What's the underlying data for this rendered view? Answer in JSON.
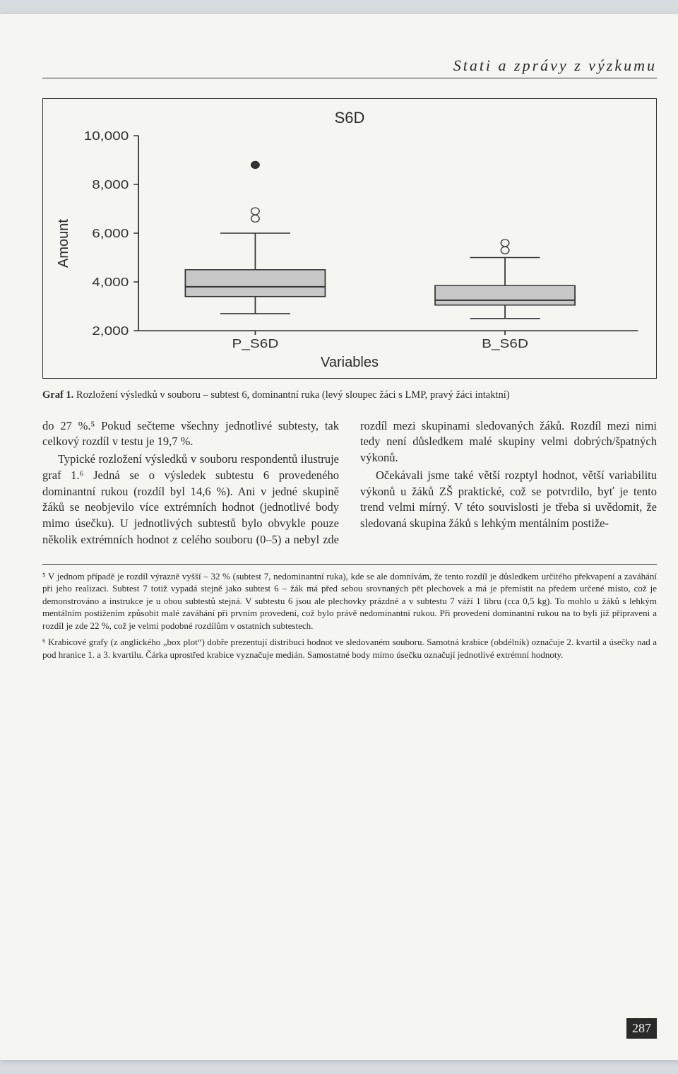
{
  "header": {
    "title": "Stati a zprávy z výzkumu"
  },
  "chart": {
    "type": "boxplot",
    "title": "S6D",
    "ylabel": "Amount",
    "xlabel": "Variables",
    "ylim": [
      2000,
      10000
    ],
    "yticks": [
      2000,
      4000,
      6000,
      8000,
      10000
    ],
    "ytick_labels": [
      "2,000",
      "4,000",
      "6,000",
      "8,000",
      "10,000"
    ],
    "label_fontsize": 20,
    "tick_fontsize": 18,
    "title_fontsize": 22,
    "axis_color": "#333333",
    "tick_color": "#333333",
    "box_fill": "#c8c8c8",
    "box_stroke": "#333333",
    "whisker_stroke": "#333333",
    "outlier_stroke": "#333333",
    "outlier_fill_open": "#f5f5f2",
    "outlier_fill_solid": "#333333",
    "background_color": "#f5f5f2",
    "categories": [
      "P_S6D",
      "B_S6D"
    ],
    "boxes": [
      {
        "label": "P_S6D",
        "whisker_low": 2700,
        "q1": 3400,
        "median": 3800,
        "q3": 4500,
        "whisker_high": 6000,
        "outliers": [
          {
            "value": 6600,
            "filled": false
          },
          {
            "value": 6900,
            "filled": false
          },
          {
            "value": 8800,
            "filled": true
          }
        ]
      },
      {
        "label": "B_S6D",
        "whisker_low": 2500,
        "q1": 3050,
        "median": 3250,
        "q3": 3850,
        "whisker_high": 5000,
        "outliers": [
          {
            "value": 5300,
            "filled": false
          },
          {
            "value": 5600,
            "filled": false
          }
        ]
      }
    ],
    "box_width_ratio": 0.28
  },
  "caption": {
    "label": "Graf 1.",
    "text": "Rozložení výsledků v souboru – subtest 6, dominantní ruka (levý sloupec žáci s LMP, pravý žáci intaktní)"
  },
  "body": {
    "p1": "do 27 %.⁵ Pokud sečteme všechny jednotlivé subtesty, tak celkový rozdíl v testu je 19,7 %.",
    "p2": "Typické rozložení výsledků v souboru respondentů ilustruje graf 1.⁶ Jedná se o výsledek subtestu 6 provedeného dominantní rukou (rozdíl byl 14,6 %). Ani v jedné skupině žáků se neobjevilo více extrémních hodnot (jednotlivé body mimo úsečku). U jednotlivých subtestů bylo obvykle pouze několik extrémních hodnot z celého souboru (0–5) a nebyl zde rozdíl mezi skupinami sledovaných žáků. Rozdíl mezi nimi tedy není důsledkem malé skupiny velmi dobrých/špatných výkonů.",
    "p3": "Očekávali jsme také větší rozptyl hodnot, větší variabilitu výkonů u žáků ZŠ praktické, což se potvrdilo, byť je tento trend velmi mírný. V této souvislosti je třeba si uvědomit, že sledovaná skupina žáků s lehkým mentálním postiže-"
  },
  "footnotes": {
    "fn5": "⁵ V jednom případě je rozdíl výrazně vyšší – 32 % (subtest 7, nedominantní ruka), kde se ale domnívám, že tento rozdíl je důsledkem určitého překvapení a zaváhání při jeho realizaci. Subtest 7 totiž vypadá stejně jako subtest 6 – žák má před sebou srovnaných pět plechovek a má je přemístit na předem určené místo, což je demonstrováno a instrukce je u obou subtestů stejná. V subtestu 6 jsou ale plechovky prázdné a v subtestu 7 váží 1 libru (cca 0,5 kg). To mohlo u žáků s lehkým mentálním postižením způsobit malé zaváhání při prvním provedení, což bylo právě nedominantní rukou. Při provedení dominantní rukou na to byli již připraveni a rozdíl je zde 22 %, což je velmi podobné rozdílům v ostatních subtestech.",
    "fn6": "⁶ Krabicové grafy (z anglického „box plot“) dobře prezentují distribuci hodnot ve sledovaném souboru. Samotná krabice (obdélník) označuje 2. kvartil a úsečky nad a pod hranice 1. a 3. kvartilu. Čárka uprostřed krabice vyznačuje medián. Samostatné body mimo úsečku označují jednotlivé extrémní hodnoty."
  },
  "page_number": "287"
}
